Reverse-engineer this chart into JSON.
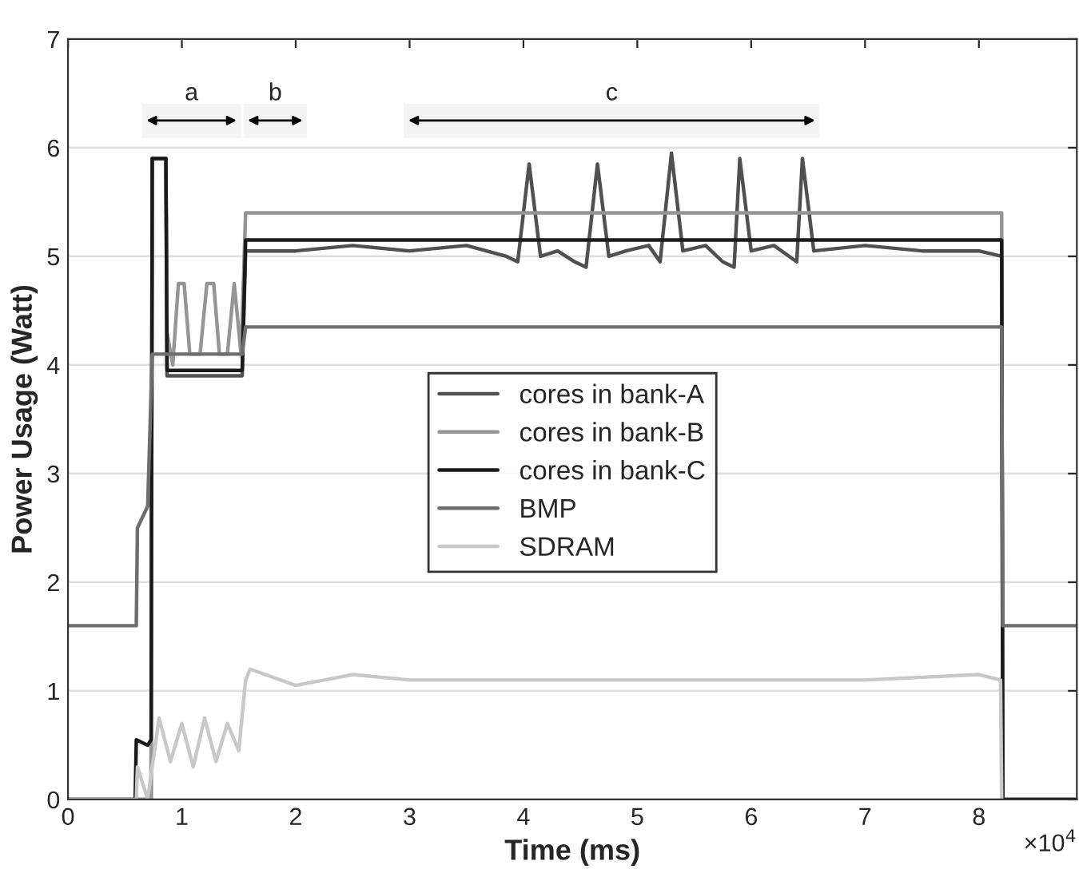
{
  "chart_data": {
    "type": "line",
    "xlabel": "Time (ms)",
    "ylabel": "Power Usage (Watt)",
    "annotations": [
      "×10$^{4}$"
    ],
    "xlim": [
      0,
      8.86
    ],
    "ylim": [
      0,
      7
    ],
    "xticks": [
      0,
      1,
      2,
      3,
      4,
      5,
      6,
      7,
      8
    ],
    "yticks": [
      0,
      1,
      2,
      3,
      4,
      5,
      6,
      7
    ],
    "grid": "y",
    "legend": "center",
    "line_style": "solid",
    "marker": "none",
    "bands": [
      {
        "axis": "x",
        "from": 0.65,
        "to": 1.52,
        "label": "a",
        "color": "#f4f4f4"
      },
      {
        "axis": "x",
        "from": 1.54,
        "to": 2.1,
        "label": "b",
        "color": "#f4f4f4"
      },
      {
        "axis": "x",
        "from": 2.95,
        "to": 6.6,
        "label": "c",
        "color": "#f4f4f4"
      }
    ],
    "series": [
      {
        "name": "cores in bank-A",
        "color": "#505050",
        "x": [
          0,
          0.73,
          0.74,
          0.86,
          0.87,
          1.53,
          1.56,
          2.0,
          2.5,
          3.0,
          3.5,
          3.85,
          3.95,
          4.05,
          4.15,
          4.3,
          4.45,
          4.55,
          4.65,
          4.75,
          4.9,
          5.1,
          5.2,
          5.3,
          5.4,
          5.6,
          5.75,
          5.85,
          5.9,
          6.0,
          6.2,
          6.4,
          6.45,
          6.55,
          7.0,
          7.5,
          8.0,
          8.2,
          8.21,
          8.86
        ],
        "values": [
          0,
          0,
          5.9,
          5.9,
          3.9,
          3.9,
          5.05,
          5.05,
          5.1,
          5.05,
          5.1,
          5.0,
          4.95,
          5.85,
          5.0,
          5.05,
          4.95,
          4.9,
          5.85,
          5.0,
          5.05,
          5.1,
          4.95,
          5.95,
          5.05,
          5.1,
          4.95,
          4.9,
          5.9,
          5.05,
          5.1,
          4.95,
          5.9,
          5.05,
          5.1,
          5.05,
          5.05,
          5.0,
          0,
          0
        ]
      },
      {
        "name": "cores in bank-B",
        "color": "#959595",
        "x": [
          0,
          0.73,
          0.74,
          0.86,
          0.87,
          0.92,
          0.97,
          1.02,
          1.07,
          1.16,
          1.22,
          1.28,
          1.33,
          1.4,
          1.46,
          1.52,
          1.56,
          2.0,
          3.0,
          4.0,
          5.0,
          6.0,
          7.0,
          8.2,
          8.21,
          8.86
        ],
        "values": [
          0,
          0,
          5.9,
          5.9,
          4.3,
          4.0,
          4.75,
          4.75,
          4.1,
          4.1,
          4.75,
          4.75,
          4.1,
          4.1,
          4.75,
          4.1,
          5.4,
          5.4,
          5.4,
          5.4,
          5.4,
          5.4,
          5.4,
          5.4,
          0,
          0
        ]
      },
      {
        "name": "cores in bank-C",
        "color": "#1a1a1a",
        "x": [
          0,
          0.59,
          0.6,
          0.7,
          0.73,
          0.74,
          0.86,
          0.87,
          1.53,
          1.56,
          3.0,
          5.0,
          7.0,
          8.2,
          8.21,
          8.86
        ],
        "values": [
          0,
          0,
          0.55,
          0.5,
          0.55,
          5.9,
          5.9,
          3.95,
          3.95,
          5.15,
          5.15,
          5.15,
          5.15,
          5.15,
          0,
          0
        ]
      },
      {
        "name": "BMP",
        "color": "#6e6e6e",
        "x": [
          0,
          0.6,
          0.61,
          0.7,
          0.74,
          0.86,
          1.53,
          1.56,
          3.0,
          5.0,
          7.0,
          8.2,
          8.21,
          8.86
        ],
        "values": [
          1.6,
          1.6,
          2.5,
          2.7,
          4.1,
          4.1,
          4.1,
          4.35,
          4.35,
          4.35,
          4.35,
          4.35,
          1.6,
          1.6
        ]
      },
      {
        "name": "SDRAM",
        "color": "#c8c8c8",
        "x": [
          0,
          0.6,
          0.61,
          0.7,
          0.74,
          0.8,
          0.9,
          1.0,
          1.1,
          1.2,
          1.3,
          1.4,
          1.5,
          1.56,
          1.6,
          2.0,
          2.5,
          3.0,
          4.0,
          5.0,
          6.0,
          7.0,
          8.0,
          8.19,
          8.2
        ],
        "values": [
          0,
          0,
          0.3,
          0.0,
          0.3,
          0.75,
          0.35,
          0.7,
          0.3,
          0.75,
          0.35,
          0.7,
          0.45,
          1.1,
          1.2,
          1.05,
          1.15,
          1.1,
          1.1,
          1.1,
          1.1,
          1.1,
          1.15,
          1.1,
          0
        ]
      }
    ]
  }
}
